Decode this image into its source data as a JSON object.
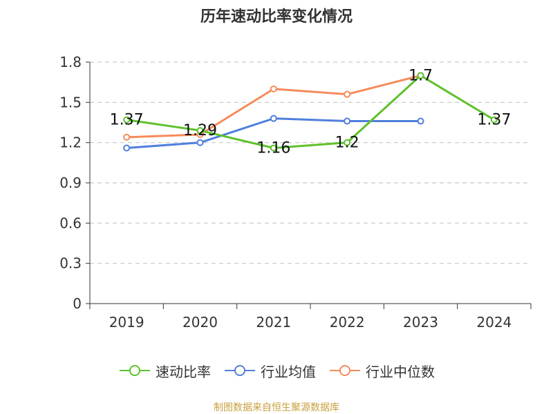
{
  "chart_data": {
    "type": "line",
    "title": "历年速动比率变化情况",
    "categories": [
      "2019",
      "2020",
      "2021",
      "2022",
      "2023",
      "2024"
    ],
    "ylim": [
      0,
      1.8
    ],
    "yticks": [
      "0",
      "0.3",
      "0.6",
      "0.9",
      "1.2",
      "1.5",
      "1.8"
    ],
    "grid": true,
    "legend_position": "bottom",
    "series": [
      {
        "name": "速动比率",
        "color": "#5ec12a",
        "values": [
          1.37,
          1.29,
          1.16,
          1.2,
          1.7,
          1.37
        ],
        "labels": [
          "1.37",
          "1.29",
          "1.16",
          "1.2",
          "1.7",
          "1.37"
        ]
      },
      {
        "name": "行业均值",
        "color": "#4f7fdc",
        "values": [
          1.16,
          1.2,
          1.38,
          1.36,
          1.36,
          null
        ]
      },
      {
        "name": "行业中位数",
        "color": "#f58b5a",
        "values": [
          1.24,
          1.26,
          1.6,
          1.56,
          1.7,
          null
        ]
      }
    ]
  },
  "source_text": "制图数据来自恒生聚源数据库"
}
